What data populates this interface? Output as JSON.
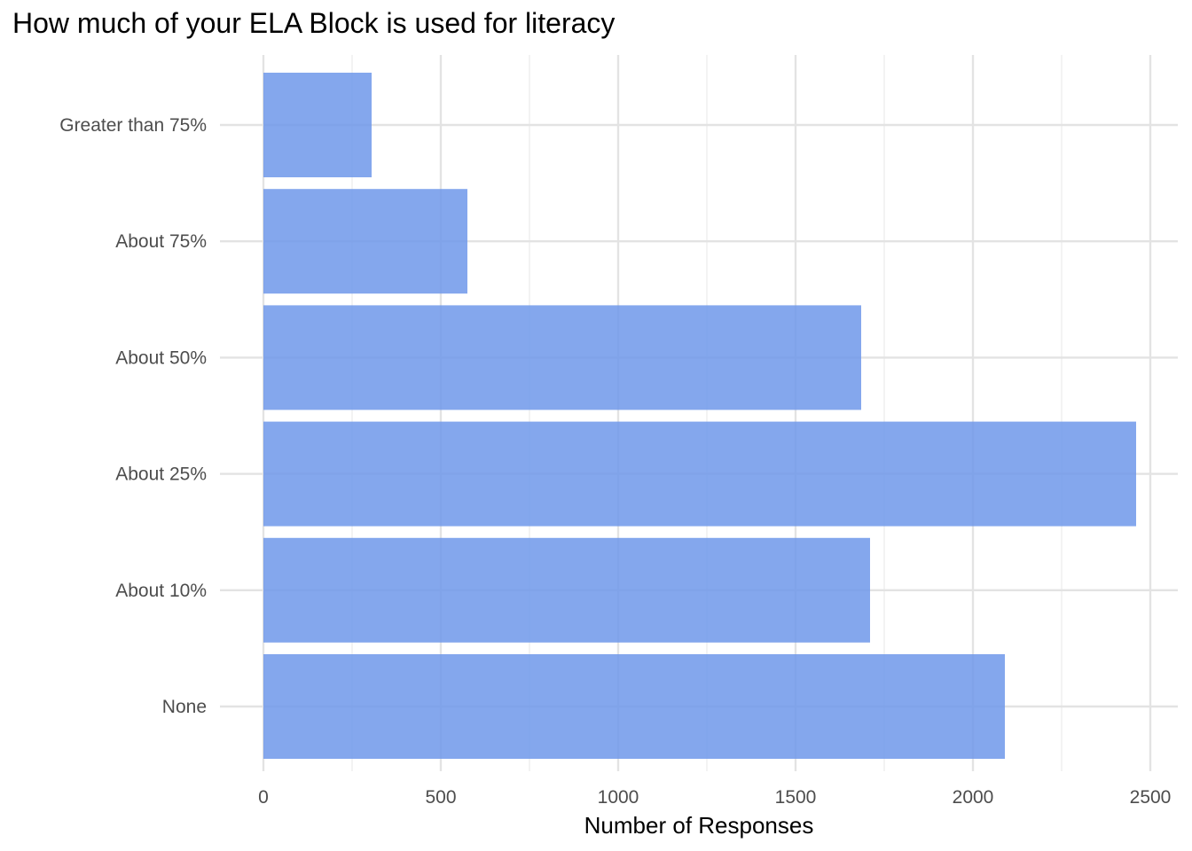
{
  "chart_data": {
    "type": "bar",
    "orientation": "horizontal",
    "title": "How much of your ELA Block is used for literacy",
    "xlabel": "Number of Responses",
    "ylabel": "",
    "categories": [
      "None",
      "About 10%",
      "About 25%",
      "About 50%",
      "About 75%",
      "Greater than 75%"
    ],
    "values": [
      2090,
      1710,
      2460,
      1685,
      575,
      305
    ],
    "xlim": [
      0,
      2500
    ],
    "x_ticks": [
      0,
      500,
      1000,
      1500,
      2000,
      2500
    ],
    "grid": true,
    "legend": "none",
    "bar_color": "#6f98ea"
  }
}
